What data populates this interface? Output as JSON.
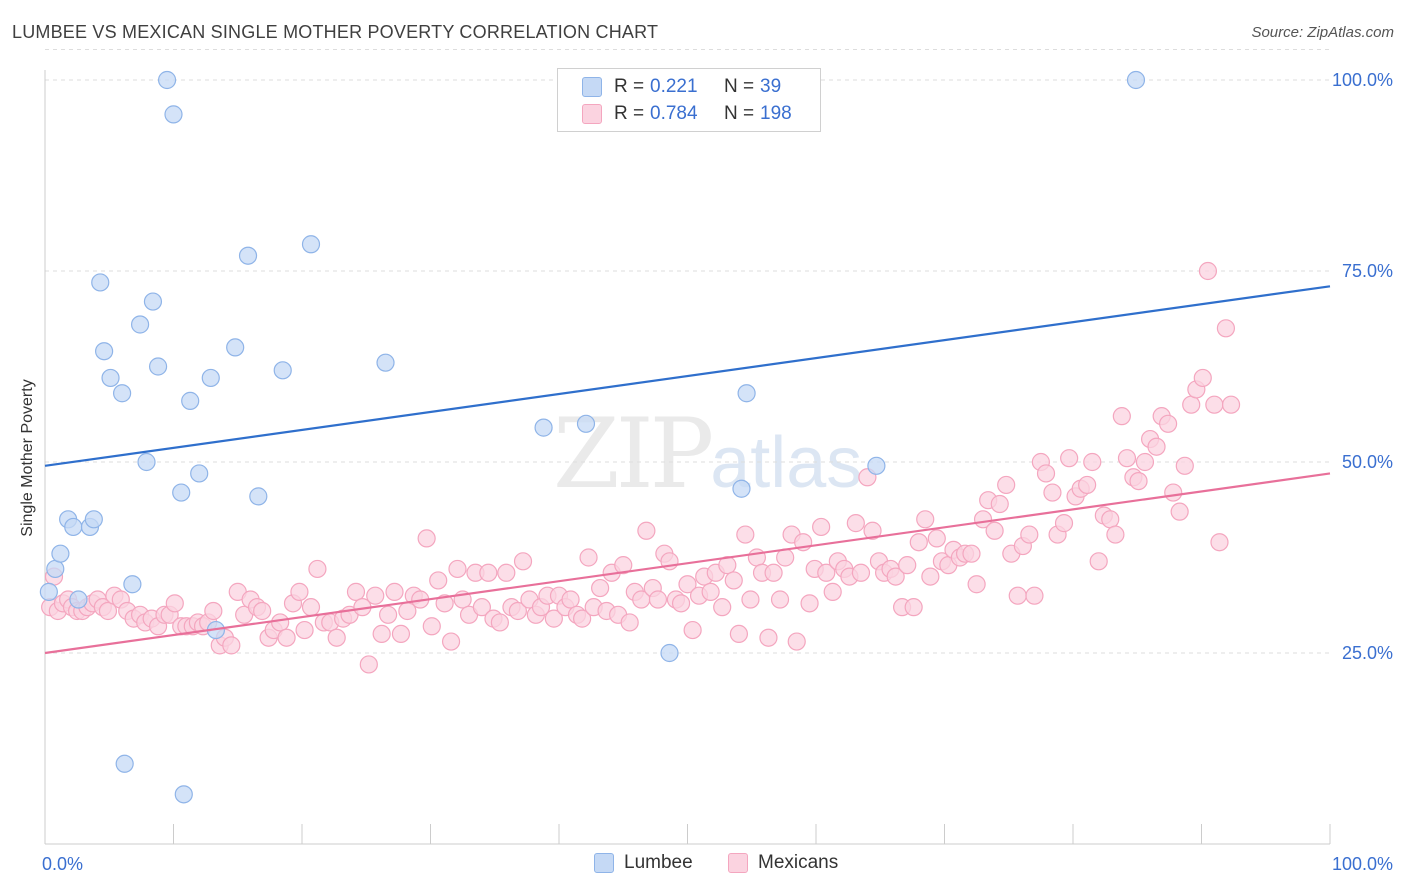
{
  "header": {
    "title": "LUMBEE VS MEXICAN SINGLE MOTHER POVERTY CORRELATION CHART",
    "source": "Source: ZipAtlas.com"
  },
  "watermark": {
    "zip": "ZIP",
    "atlas": "atlas"
  },
  "legend": {
    "rows": [
      {
        "r_label": "R =",
        "r_value": "0.221",
        "n_label": "N =",
        "n_value": "39",
        "color": "#8fb4e8"
      },
      {
        "r_label": "R =",
        "r_value": "0.784",
        "n_label": "N =",
        "n_value": "198",
        "color": "#f4a6bf"
      }
    ]
  },
  "bottom_legend": {
    "lumbee": "Lumbee",
    "mexicans": "Mexicans"
  },
  "colors": {
    "lumbee_fill": "#c5d9f5",
    "lumbee_stroke": "#8fb4e8",
    "lumbee_line": "#2f6fcc",
    "mex_fill": "#fbd3e0",
    "mex_stroke": "#f4a6bf",
    "mex_line": "#e8709a",
    "tick_label": "#3a6fd0",
    "grid": "#dddddd"
  },
  "chart_data": {
    "type": "scatter",
    "title": "LUMBEE VS MEXICAN SINGLE MOTHER POVERTY CORRELATION CHART",
    "xlabel": "",
    "ylabel": "Single Mother Poverty",
    "xlim": [
      0,
      100
    ],
    "ylim": [
      0,
      104
    ],
    "x_tick_labels": [
      "0.0%",
      "100.0%"
    ],
    "y_ticks": [
      25,
      50,
      75,
      100
    ],
    "y_tick_labels": [
      "25.0%",
      "50.0%",
      "75.0%",
      "100.0%"
    ],
    "grid": true,
    "series": [
      {
        "name": "Lumbee",
        "trend": {
          "x": [
            0,
            100
          ],
          "y": [
            49.5,
            73.0
          ]
        },
        "points": [
          [
            0.8,
            36
          ],
          [
            1.2,
            38
          ],
          [
            1.8,
            42.5
          ],
          [
            2.2,
            41.5
          ],
          [
            2.6,
            32
          ],
          [
            3.5,
            41.5
          ],
          [
            3.8,
            42.5
          ],
          [
            4.3,
            73.5
          ],
          [
            4.6,
            64.5
          ],
          [
            5.1,
            61
          ],
          [
            6.0,
            59
          ],
          [
            6.2,
            10.5
          ],
          [
            6.8,
            34
          ],
          [
            7.4,
            68
          ],
          [
            7.9,
            50
          ],
          [
            8.4,
            71
          ],
          [
            8.8,
            62.5
          ],
          [
            9.5,
            100
          ],
          [
            10.0,
            95.5
          ],
          [
            10.6,
            46
          ],
          [
            11.3,
            58
          ],
          [
            12.0,
            48.5
          ],
          [
            12.9,
            61
          ],
          [
            13.3,
            28
          ],
          [
            14.8,
            65
          ],
          [
            15.8,
            77
          ],
          [
            16.6,
            45.5
          ],
          [
            18.5,
            62
          ],
          [
            20.7,
            78.5
          ],
          [
            26.5,
            63
          ],
          [
            10.8,
            6.5
          ],
          [
            38.8,
            54.5
          ],
          [
            42.1,
            55
          ],
          [
            48.6,
            25
          ],
          [
            54.2,
            46.5
          ],
          [
            54.6,
            59
          ],
          [
            64.7,
            49.5
          ],
          [
            84.9,
            100
          ],
          [
            0.3,
            33
          ]
        ]
      },
      {
        "name": "Mexicans",
        "trend": {
          "x": [
            0,
            100
          ],
          "y": [
            25.0,
            48.5
          ]
        },
        "points": [
          [
            0.4,
            31
          ],
          [
            0.7,
            35
          ],
          [
            1.0,
            30.5
          ],
          [
            1.4,
            31.5
          ],
          [
            1.8,
            32
          ],
          [
            2.1,
            31
          ],
          [
            2.5,
            30.5
          ],
          [
            2.9,
            30.5
          ],
          [
            3.3,
            31
          ],
          [
            3.7,
            31.5
          ],
          [
            4.1,
            32
          ],
          [
            4.5,
            31
          ],
          [
            4.9,
            30.5
          ],
          [
            5.4,
            32.5
          ],
          [
            5.9,
            32
          ],
          [
            6.4,
            30.5
          ],
          [
            6.9,
            29.5
          ],
          [
            7.4,
            30
          ],
          [
            7.8,
            29
          ],
          [
            8.3,
            29.5
          ],
          [
            8.8,
            28.5
          ],
          [
            9.3,
            30
          ],
          [
            9.7,
            30
          ],
          [
            10.1,
            31.5
          ],
          [
            10.6,
            28.5
          ],
          [
            11.0,
            28.5
          ],
          [
            11.5,
            28.5
          ],
          [
            11.9,
            29
          ],
          [
            12.3,
            28.5
          ],
          [
            12.7,
            29
          ],
          [
            13.1,
            30.5
          ],
          [
            13.6,
            26
          ],
          [
            14.0,
            27
          ],
          [
            14.5,
            26
          ],
          [
            15.0,
            33
          ],
          [
            15.5,
            30
          ],
          [
            16.0,
            32
          ],
          [
            16.5,
            31
          ],
          [
            16.9,
            30.5
          ],
          [
            17.4,
            27
          ],
          [
            17.8,
            28
          ],
          [
            18.3,
            29
          ],
          [
            18.8,
            27
          ],
          [
            19.3,
            31.5
          ],
          [
            19.8,
            33
          ],
          [
            20.2,
            28
          ],
          [
            20.7,
            31
          ],
          [
            21.2,
            36
          ],
          [
            21.7,
            29
          ],
          [
            22.2,
            29
          ],
          [
            22.7,
            27
          ],
          [
            23.2,
            29.5
          ],
          [
            23.7,
            30
          ],
          [
            24.2,
            33
          ],
          [
            24.7,
            31
          ],
          [
            25.2,
            23.5
          ],
          [
            25.7,
            32.5
          ],
          [
            26.2,
            27.5
          ],
          [
            26.7,
            30
          ],
          [
            27.2,
            33
          ],
          [
            27.7,
            27.5
          ],
          [
            28.2,
            30.5
          ],
          [
            28.7,
            32.5
          ],
          [
            29.2,
            32
          ],
          [
            29.7,
            40
          ],
          [
            30.1,
            28.5
          ],
          [
            30.6,
            34.5
          ],
          [
            31.1,
            31.5
          ],
          [
            31.6,
            26.5
          ],
          [
            32.1,
            36
          ],
          [
            32.5,
            32
          ],
          [
            33.0,
            30
          ],
          [
            33.5,
            35.5
          ],
          [
            34.0,
            31
          ],
          [
            34.5,
            35.5
          ],
          [
            34.9,
            29.5
          ],
          [
            35.4,
            29
          ],
          [
            35.9,
            35.5
          ],
          [
            36.3,
            31
          ],
          [
            36.8,
            30.5
          ],
          [
            37.2,
            37
          ],
          [
            37.7,
            32
          ],
          [
            38.2,
            30
          ],
          [
            38.6,
            31
          ],
          [
            39.1,
            32.5
          ],
          [
            39.6,
            29.5
          ],
          [
            40.0,
            32.5
          ],
          [
            40.5,
            31
          ],
          [
            40.9,
            32
          ],
          [
            41.4,
            30
          ],
          [
            41.8,
            29.5
          ],
          [
            42.3,
            37.5
          ],
          [
            42.7,
            31
          ],
          [
            43.2,
            33.5
          ],
          [
            43.7,
            30.5
          ],
          [
            44.1,
            35.5
          ],
          [
            44.6,
            30
          ],
          [
            45.0,
            36.5
          ],
          [
            45.5,
            29
          ],
          [
            45.9,
            33
          ],
          [
            46.4,
            32
          ],
          [
            46.8,
            41
          ],
          [
            47.3,
            33.5
          ],
          [
            47.7,
            32
          ],
          [
            48.2,
            38
          ],
          [
            48.6,
            37
          ],
          [
            49.1,
            32
          ],
          [
            49.5,
            31.5
          ],
          [
            50.0,
            34
          ],
          [
            50.4,
            28
          ],
          [
            50.9,
            32.5
          ],
          [
            51.3,
            35
          ],
          [
            51.8,
            33
          ],
          [
            52.2,
            35.5
          ],
          [
            52.7,
            31
          ],
          [
            53.1,
            36.5
          ],
          [
            53.6,
            34.5
          ],
          [
            54.0,
            27.5
          ],
          [
            54.5,
            40.5
          ],
          [
            54.9,
            32
          ],
          [
            55.4,
            37.5
          ],
          [
            55.8,
            35.5
          ],
          [
            56.3,
            27
          ],
          [
            56.7,
            35.5
          ],
          [
            57.2,
            32
          ],
          [
            57.6,
            37.5
          ],
          [
            58.1,
            40.5
          ],
          [
            58.5,
            26.5
          ],
          [
            59.0,
            39.5
          ],
          [
            59.5,
            31.5
          ],
          [
            59.9,
            36
          ],
          [
            60.4,
            41.5
          ],
          [
            60.8,
            35.5
          ],
          [
            61.3,
            33
          ],
          [
            61.7,
            37
          ],
          [
            62.2,
            36
          ],
          [
            62.6,
            35
          ],
          [
            63.1,
            42
          ],
          [
            63.5,
            35.5
          ],
          [
            64.0,
            48
          ],
          [
            64.4,
            41
          ],
          [
            64.9,
            37
          ],
          [
            65.3,
            35.5
          ],
          [
            65.8,
            36
          ],
          [
            66.2,
            35
          ],
          [
            66.7,
            31
          ],
          [
            67.1,
            36.5
          ],
          [
            67.6,
            31
          ],
          [
            68.0,
            39.5
          ],
          [
            68.5,
            42.5
          ],
          [
            68.9,
            35
          ],
          [
            69.4,
            40
          ],
          [
            69.8,
            37
          ],
          [
            70.3,
            36.5
          ],
          [
            70.7,
            38.5
          ],
          [
            71.2,
            37.5
          ],
          [
            71.6,
            38
          ],
          [
            72.1,
            38
          ],
          [
            72.5,
            34
          ],
          [
            73.0,
            42.5
          ],
          [
            73.4,
            45
          ],
          [
            73.9,
            41
          ],
          [
            74.3,
            44.5
          ],
          [
            74.8,
            47
          ],
          [
            75.2,
            38
          ],
          [
            75.7,
            32.5
          ],
          [
            76.1,
            39
          ],
          [
            76.6,
            40.5
          ],
          [
            77.0,
            32.5
          ],
          [
            77.5,
            50
          ],
          [
            77.9,
            48.5
          ],
          [
            78.4,
            46
          ],
          [
            78.8,
            40.5
          ],
          [
            79.3,
            42
          ],
          [
            79.7,
            50.5
          ],
          [
            80.2,
            45.5
          ],
          [
            80.6,
            46.5
          ],
          [
            81.1,
            47
          ],
          [
            81.5,
            50
          ],
          [
            82.0,
            37
          ],
          [
            82.4,
            43
          ],
          [
            82.9,
            42.5
          ],
          [
            83.3,
            40.5
          ],
          [
            83.8,
            56
          ],
          [
            84.2,
            50.5
          ],
          [
            84.7,
            48
          ],
          [
            85.1,
            47.5
          ],
          [
            85.6,
            50
          ],
          [
            86.0,
            53
          ],
          [
            86.5,
            52
          ],
          [
            86.9,
            56
          ],
          [
            87.4,
            55
          ],
          [
            87.8,
            46
          ],
          [
            88.3,
            43.5
          ],
          [
            88.7,
            49.5
          ],
          [
            89.2,
            57.5
          ],
          [
            89.6,
            59.5
          ],
          [
            90.1,
            61
          ],
          [
            90.5,
            75
          ],
          [
            91.0,
            57.5
          ],
          [
            91.4,
            39.5
          ],
          [
            91.9,
            67.5
          ],
          [
            92.3,
            57.5
          ]
        ]
      }
    ]
  }
}
